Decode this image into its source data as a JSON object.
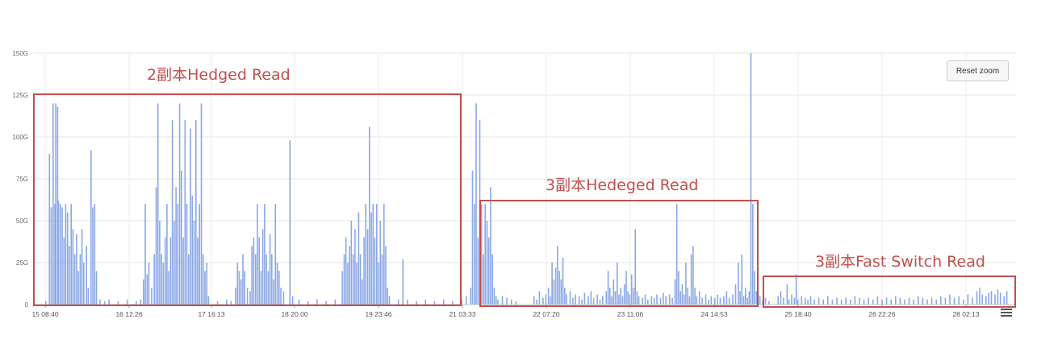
{
  "chart_data": {
    "type": "bar",
    "y_ticks": [
      "0",
      "25G",
      "50G",
      "75G",
      "100G",
      "125G",
      "150G"
    ],
    "y_unit": "G",
    "ylim": [
      0,
      150
    ],
    "x_ticks": [
      "15 08:40",
      "16 12:26",
      "17 16:13",
      "18 20:00",
      "19 23:46",
      "21 03:33",
      "22 07:20",
      "23 11:06",
      "24 14:53",
      "25 18:40",
      "26 22:26",
      "28 02:13"
    ],
    "grid": true,
    "series_color": "#8aa7e6",
    "spikes": [
      [
        0.0,
        2
      ],
      [
        0.4,
        90
      ],
      [
        0.6,
        58
      ],
      [
        0.8,
        120
      ],
      [
        1.0,
        60
      ],
      [
        1.1,
        120
      ],
      [
        1.3,
        118
      ],
      [
        1.4,
        62
      ],
      [
        1.6,
        60
      ],
      [
        1.8,
        58
      ],
      [
        2.0,
        40
      ],
      [
        2.2,
        60
      ],
      [
        2.4,
        55
      ],
      [
        2.6,
        35
      ],
      [
        2.8,
        60
      ],
      [
        3.0,
        45
      ],
      [
        3.2,
        30
      ],
      [
        3.4,
        42
      ],
      [
        3.6,
        20
      ],
      [
        3.8,
        30
      ],
      [
        4.0,
        45
      ],
      [
        4.2,
        25
      ],
      [
        4.5,
        35
      ],
      [
        4.7,
        10
      ],
      [
        5.0,
        92
      ],
      [
        5.2,
        58
      ],
      [
        5.4,
        60
      ],
      [
        5.6,
        20
      ],
      [
        6.0,
        3
      ],
      [
        6.5,
        2
      ],
      [
        7.0,
        3
      ],
      [
        8.0,
        2
      ],
      [
        9.0,
        3
      ],
      [
        10.0,
        2
      ],
      [
        10.5,
        3
      ],
      [
        10.8,
        15
      ],
      [
        11.0,
        60
      ],
      [
        11.2,
        18
      ],
      [
        11.4,
        25
      ],
      [
        11.7,
        10
      ],
      [
        12.0,
        30
      ],
      [
        12.2,
        70
      ],
      [
        12.4,
        120
      ],
      [
        12.6,
        50
      ],
      [
        12.8,
        30
      ],
      [
        13.0,
        25
      ],
      [
        13.2,
        40
      ],
      [
        13.4,
        60
      ],
      [
        13.6,
        20
      ],
      [
        13.8,
        40
      ],
      [
        14.0,
        110
      ],
      [
        14.2,
        50
      ],
      [
        14.4,
        70
      ],
      [
        14.6,
        60
      ],
      [
        14.8,
        120
      ],
      [
        15.0,
        80
      ],
      [
        15.2,
        40
      ],
      [
        15.4,
        110
      ],
      [
        15.6,
        60
      ],
      [
        15.8,
        30
      ],
      [
        16.0,
        105
      ],
      [
        16.2,
        65
      ],
      [
        16.4,
        50
      ],
      [
        16.6,
        110
      ],
      [
        16.8,
        40
      ],
      [
        17.0,
        60
      ],
      [
        17.2,
        120
      ],
      [
        17.4,
        30
      ],
      [
        17.6,
        20
      ],
      [
        17.8,
        25
      ],
      [
        18.0,
        5
      ],
      [
        19.0,
        2
      ],
      [
        20.0,
        3
      ],
      [
        20.5,
        2
      ],
      [
        21.0,
        10
      ],
      [
        21.2,
        25
      ],
      [
        21.4,
        20
      ],
      [
        21.6,
        15
      ],
      [
        21.8,
        30
      ],
      [
        22.0,
        20
      ],
      [
        22.3,
        10
      ],
      [
        22.6,
        8
      ],
      [
        22.8,
        35
      ],
      [
        23.0,
        40
      ],
      [
        23.2,
        30
      ],
      [
        23.4,
        60
      ],
      [
        23.6,
        40
      ],
      [
        23.8,
        20
      ],
      [
        24.0,
        45
      ],
      [
        24.2,
        60
      ],
      [
        24.4,
        30
      ],
      [
        24.6,
        20
      ],
      [
        24.8,
        42
      ],
      [
        25.0,
        30
      ],
      [
        25.2,
        15
      ],
      [
        25.4,
        60
      ],
      [
        25.6,
        25
      ],
      [
        25.8,
        20
      ],
      [
        26.0,
        10
      ],
      [
        26.3,
        8
      ],
      [
        27.0,
        98
      ],
      [
        27.3,
        5
      ],
      [
        28.0,
        3
      ],
      [
        29.0,
        2
      ],
      [
        30.0,
        3
      ],
      [
        31.0,
        2
      ],
      [
        32.0,
        3
      ],
      [
        32.8,
        20
      ],
      [
        33.0,
        30
      ],
      [
        33.2,
        40
      ],
      [
        33.4,
        25
      ],
      [
        33.6,
        35
      ],
      [
        33.8,
        50
      ],
      [
        34.0,
        30
      ],
      [
        34.2,
        45
      ],
      [
        34.4,
        25
      ],
      [
        34.6,
        55
      ],
      [
        34.8,
        30
      ],
      [
        35.0,
        15
      ],
      [
        35.2,
        40
      ],
      [
        35.4,
        60
      ],
      [
        35.6,
        45
      ],
      [
        35.8,
        106
      ],
      [
        36.0,
        55
      ],
      [
        36.2,
        60
      ],
      [
        36.4,
        40
      ],
      [
        36.6,
        60
      ],
      [
        36.8,
        25
      ],
      [
        37.0,
        50
      ],
      [
        37.2,
        30
      ],
      [
        37.4,
        60
      ],
      [
        37.6,
        35
      ],
      [
        37.8,
        10
      ],
      [
        38.0,
        5
      ],
      [
        39.0,
        3
      ],
      [
        39.5,
        27
      ],
      [
        40.0,
        3
      ],
      [
        41.0,
        2
      ],
      [
        42.0,
        3
      ],
      [
        43.0,
        2
      ],
      [
        44.0,
        3
      ],
      [
        45.0,
        2
      ],
      [
        46.0,
        3
      ],
      [
        46.5,
        5
      ],
      [
        47.0,
        10
      ],
      [
        47.2,
        80
      ],
      [
        47.4,
        60
      ],
      [
        47.6,
        120
      ],
      [
        47.8,
        40
      ],
      [
        48.0,
        110
      ],
      [
        48.2,
        60
      ],
      [
        48.4,
        30
      ],
      [
        48.6,
        60
      ],
      [
        48.8,
        50
      ],
      [
        49.0,
        40
      ],
      [
        49.2,
        70
      ],
      [
        49.4,
        30
      ],
      [
        49.6,
        10
      ],
      [
        49.8,
        5
      ],
      [
        50.0,
        3
      ],
      [
        50.5,
        5
      ],
      [
        51.0,
        4
      ],
      [
        51.5,
        3
      ],
      [
        52.0,
        2
      ],
      [
        54.0,
        5
      ],
      [
        54.3,
        3
      ],
      [
        54.6,
        8
      ],
      [
        55.0,
        4
      ],
      [
        55.3,
        6
      ],
      [
        55.6,
        10
      ],
      [
        55.8,
        5
      ],
      [
        56.0,
        25
      ],
      [
        56.2,
        15
      ],
      [
        56.4,
        22
      ],
      [
        56.6,
        35
      ],
      [
        56.8,
        20
      ],
      [
        57.0,
        15
      ],
      [
        57.2,
        28
      ],
      [
        57.4,
        10
      ],
      [
        57.6,
        6
      ],
      [
        58.0,
        8
      ],
      [
        58.3,
        4
      ],
      [
        58.6,
        6
      ],
      [
        59.0,
        5
      ],
      [
        59.3,
        3
      ],
      [
        59.6,
        7
      ],
      [
        60.0,
        5
      ],
      [
        60.3,
        8
      ],
      [
        60.6,
        4
      ],
      [
        61.0,
        6
      ],
      [
        61.3,
        3
      ],
      [
        61.6,
        5
      ],
      [
        62.0,
        8
      ],
      [
        62.2,
        20
      ],
      [
        62.4,
        10
      ],
      [
        62.6,
        5
      ],
      [
        62.8,
        15
      ],
      [
        63.0,
        8
      ],
      [
        63.2,
        25
      ],
      [
        63.4,
        6
      ],
      [
        63.6,
        10
      ],
      [
        63.8,
        5
      ],
      [
        64.0,
        12
      ],
      [
        64.2,
        20
      ],
      [
        64.4,
        8
      ],
      [
        64.6,
        6
      ],
      [
        64.8,
        18
      ],
      [
        65.0,
        10
      ],
      [
        65.2,
        45
      ],
      [
        65.4,
        8
      ],
      [
        65.6,
        5
      ],
      [
        66.0,
        4
      ],
      [
        66.3,
        6
      ],
      [
        66.6,
        3
      ],
      [
        67.0,
        5
      ],
      [
        67.3,
        4
      ],
      [
        67.6,
        6
      ],
      [
        68.0,
        4
      ],
      [
        68.3,
        7
      ],
      [
        68.6,
        5
      ],
      [
        69.0,
        6
      ],
      [
        69.3,
        4
      ],
      [
        69.6,
        15
      ],
      [
        69.8,
        60
      ],
      [
        70.0,
        20
      ],
      [
        70.2,
        8
      ],
      [
        70.4,
        12
      ],
      [
        70.6,
        6
      ],
      [
        70.8,
        25
      ],
      [
        71.0,
        10
      ],
      [
        71.2,
        5
      ],
      [
        71.4,
        30
      ],
      [
        71.6,
        35
      ],
      [
        71.8,
        10
      ],
      [
        72.0,
        5
      ],
      [
        72.3,
        8
      ],
      [
        72.6,
        4
      ],
      [
        73.0,
        6
      ],
      [
        73.3,
        3
      ],
      [
        73.6,
        5
      ],
      [
        74.0,
        4
      ],
      [
        74.3,
        6
      ],
      [
        74.6,
        4
      ],
      [
        75.0,
        5
      ],
      [
        75.3,
        8
      ],
      [
        75.6,
        4
      ],
      [
        76.0,
        6
      ],
      [
        76.3,
        12
      ],
      [
        76.6,
        25
      ],
      [
        76.8,
        8
      ],
      [
        77.0,
        30
      ],
      [
        77.2,
        5
      ],
      [
        77.4,
        10
      ],
      [
        77.6,
        4
      ],
      [
        77.8,
        8
      ],
      [
        78.0,
        150
      ],
      [
        78.2,
        60
      ],
      [
        78.4,
        20
      ],
      [
        78.6,
        8
      ],
      [
        78.8,
        6
      ],
      [
        79.0,
        5
      ],
      [
        79.3,
        3
      ],
      [
        79.6,
        4
      ],
      [
        80.0,
        2
      ],
      [
        81.0,
        5
      ],
      [
        81.3,
        8
      ],
      [
        81.6,
        4
      ],
      [
        82.0,
        12
      ],
      [
        82.2,
        3
      ],
      [
        82.5,
        6
      ],
      [
        82.8,
        4
      ],
      [
        83.0,
        18
      ],
      [
        83.2,
        3
      ],
      [
        83.6,
        5
      ],
      [
        84.0,
        4
      ],
      [
        84.3,
        3
      ],
      [
        84.6,
        5
      ],
      [
        85.0,
        3
      ],
      [
        85.5,
        4
      ],
      [
        86.0,
        3
      ],
      [
        86.5,
        5
      ],
      [
        87.0,
        3
      ],
      [
        87.5,
        4
      ],
      [
        88.0,
        3
      ],
      [
        88.5,
        4
      ],
      [
        89.0,
        3
      ],
      [
        89.5,
        5
      ],
      [
        90.0,
        4
      ],
      [
        90.5,
        3
      ],
      [
        91.0,
        4
      ],
      [
        91.5,
        3
      ],
      [
        92.0,
        5
      ],
      [
        92.5,
        3
      ],
      [
        93.0,
        4
      ],
      [
        93.5,
        3
      ],
      [
        94.0,
        5
      ],
      [
        94.5,
        4
      ],
      [
        95.0,
        3
      ],
      [
        95.5,
        4
      ],
      [
        96.0,
        3
      ],
      [
        96.5,
        5
      ],
      [
        97.0,
        4
      ],
      [
        97.5,
        3
      ],
      [
        98.0,
        4
      ],
      [
        98.5,
        3
      ],
      [
        99.0,
        5
      ],
      [
        99.5,
        4
      ],
      [
        100.0,
        6
      ],
      [
        100.5,
        4
      ],
      [
        101.0,
        5
      ],
      [
        101.5,
        3
      ],
      [
        102.0,
        6
      ],
      [
        102.5,
        4
      ],
      [
        103.0,
        8
      ],
      [
        103.3,
        10
      ],
      [
        103.6,
        6
      ],
      [
        104.0,
        5
      ],
      [
        104.3,
        7
      ],
      [
        104.6,
        8
      ],
      [
        105.0,
        6
      ],
      [
        105.3,
        9
      ],
      [
        105.6,
        7
      ],
      [
        106.0,
        5
      ],
      [
        106.3,
        8
      ]
    ],
    "x_span": [
      0,
      106.5
    ],
    "annotations": [
      "2副本Hedged Read",
      "3副本Hedeged Read",
      "3副本Fast Switch Read"
    ]
  },
  "toolbar": {
    "reset_zoom_label": "Reset zoom",
    "menu_icon": "hamburger-menu-icon"
  }
}
